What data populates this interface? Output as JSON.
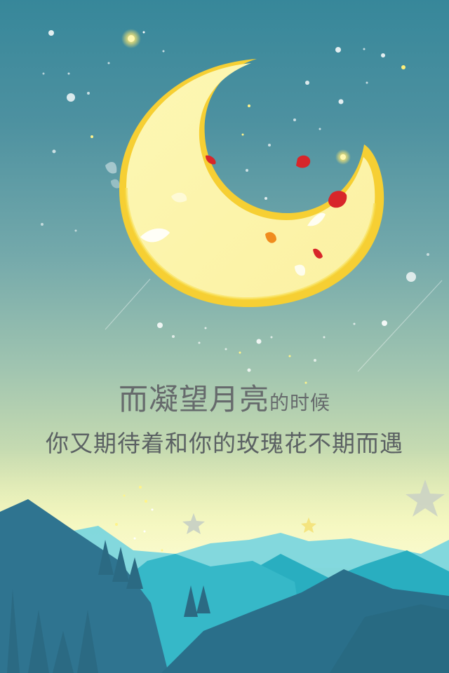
{
  "screen": "splash",
  "slogan": {
    "line1_large": "而凝望月亮",
    "line1_small": "的时候",
    "line2": "你又期待着和你的玫瑰花不期而遇"
  },
  "colors": {
    "sky_top": "#37879a",
    "sky_bottom": "#f4f6b8",
    "moon_fill": "#fdf6ad",
    "moon_rim": "#f7d53c",
    "petal": "#d8262a",
    "mountain_dark": "#2f6f88",
    "mountain_teal": "#2bb6c6",
    "text": "#5a5f62"
  },
  "icons": [
    "crescent-moon-icon",
    "star-icon",
    "rose-petal-icon"
  ]
}
